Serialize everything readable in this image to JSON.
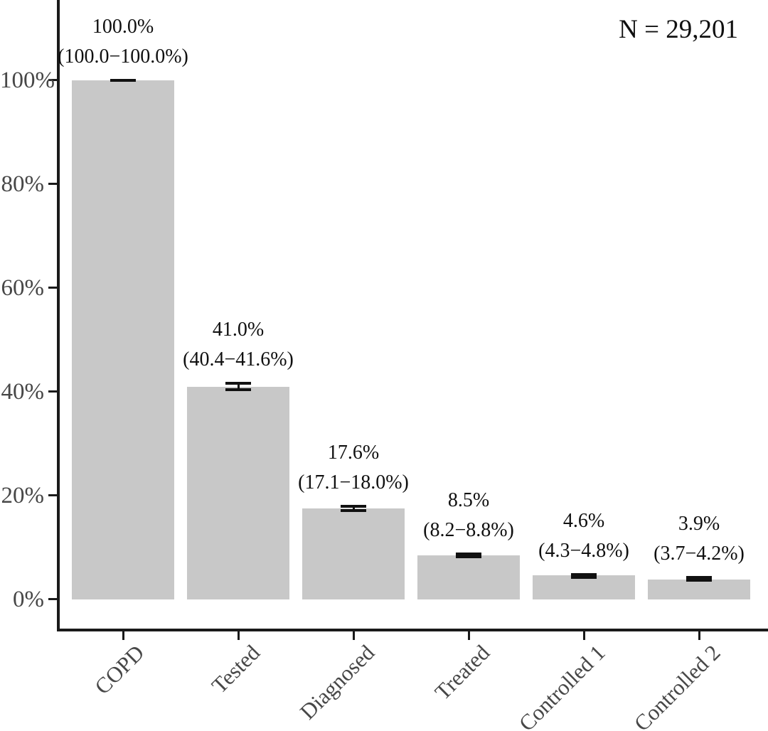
{
  "chart_data": {
    "type": "bar",
    "title": "",
    "xlabel": "",
    "ylabel": "",
    "annotation": "N = 29,201",
    "categories": [
      "COPD",
      "Tested",
      "Diagnosed",
      "Treated",
      "Controlled 1",
      "Controlled 2"
    ],
    "values": [
      100.0,
      41.0,
      17.6,
      8.5,
      4.6,
      3.9
    ],
    "ci_low": [
      100.0,
      40.4,
      17.1,
      8.2,
      4.3,
      3.7
    ],
    "ci_high": [
      100.0,
      41.6,
      18.0,
      8.8,
      4.8,
      4.2
    ],
    "value_labels": [
      "100.0%",
      "41.0%",
      "17.6%",
      "8.5%",
      "4.6%",
      "3.9%"
    ],
    "ci_labels": [
      "(100.0−100.0%)",
      "(40.4−41.6%)",
      "(17.1−18.0%)",
      "(8.2−8.8%)",
      "(4.3−4.8%)",
      "(3.7−4.2%)"
    ],
    "y_tick_labels": [
      "0%",
      "20%",
      "40%",
      "60%",
      "80%",
      "100%"
    ],
    "y_tick_values": [
      0,
      20,
      40,
      60,
      80,
      100
    ],
    "ylim": [
      0,
      100
    ],
    "grid": false,
    "legend": null,
    "colors": {
      "bar": "#c8c8c8",
      "error_bar": "#111111",
      "axis": "#1a1a1a",
      "tick_label": "#474747",
      "value_label": "#101010"
    }
  }
}
